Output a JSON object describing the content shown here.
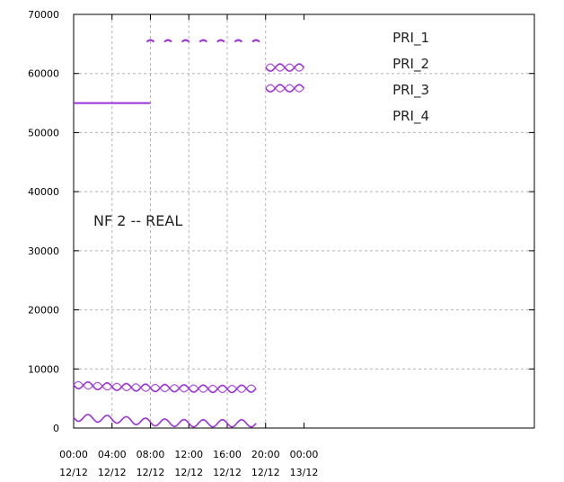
{
  "chart_data": {
    "type": "line",
    "annotation": "NF 2 -- REAL",
    "grid": true,
    "legend_position": "top-right",
    "x_range_hours": [
      0,
      48
    ],
    "ylim": [
      0,
      70000
    ],
    "y_ticks": [
      0,
      10000,
      20000,
      30000,
      40000,
      50000,
      60000,
      70000
    ],
    "y_tick_labels": [
      "0",
      "10000",
      "20000",
      "30000",
      "40000",
      "50000",
      "60000",
      "70000"
    ],
    "x_ticks_hours": [
      0,
      4,
      8,
      12,
      16,
      20,
      24
    ],
    "x_tick_labels": [
      [
        "00:00",
        "12/12"
      ],
      [
        "04:00",
        "12/12"
      ],
      [
        "08:00",
        "12/12"
      ],
      [
        "12:00",
        "12/12"
      ],
      [
        "16:00",
        "12/12"
      ],
      [
        "20:00",
        "12/12"
      ],
      [
        "00:00",
        "13/12"
      ]
    ],
    "line_color": "#9b30d9",
    "series": [
      {
        "name": "PRI_1",
        "values": [
          [
            0,
            55000
          ],
          [
            8,
            55000
          ],
          [
            8,
            65500
          ],
          [
            19,
            65500
          ]
        ]
      },
      {
        "name": "PRI_2",
        "values": [
          [
            0,
            7300
          ],
          [
            4,
            7000
          ],
          [
            8,
            6800
          ],
          [
            12,
            6700
          ],
          [
            16,
            6600
          ],
          [
            19,
            6700
          ],
          [
            20,
            61000
          ],
          [
            24,
            61000
          ]
        ]
      },
      {
        "name": "PRI_3",
        "values": [
          [
            0,
            1800
          ],
          [
            4,
            1500
          ],
          [
            8,
            1000
          ],
          [
            12,
            800
          ],
          [
            16,
            800
          ],
          [
            19,
            800
          ],
          [
            20,
            57500
          ],
          [
            24,
            57500
          ]
        ]
      },
      {
        "name": "PRI_4",
        "values": []
      }
    ]
  }
}
